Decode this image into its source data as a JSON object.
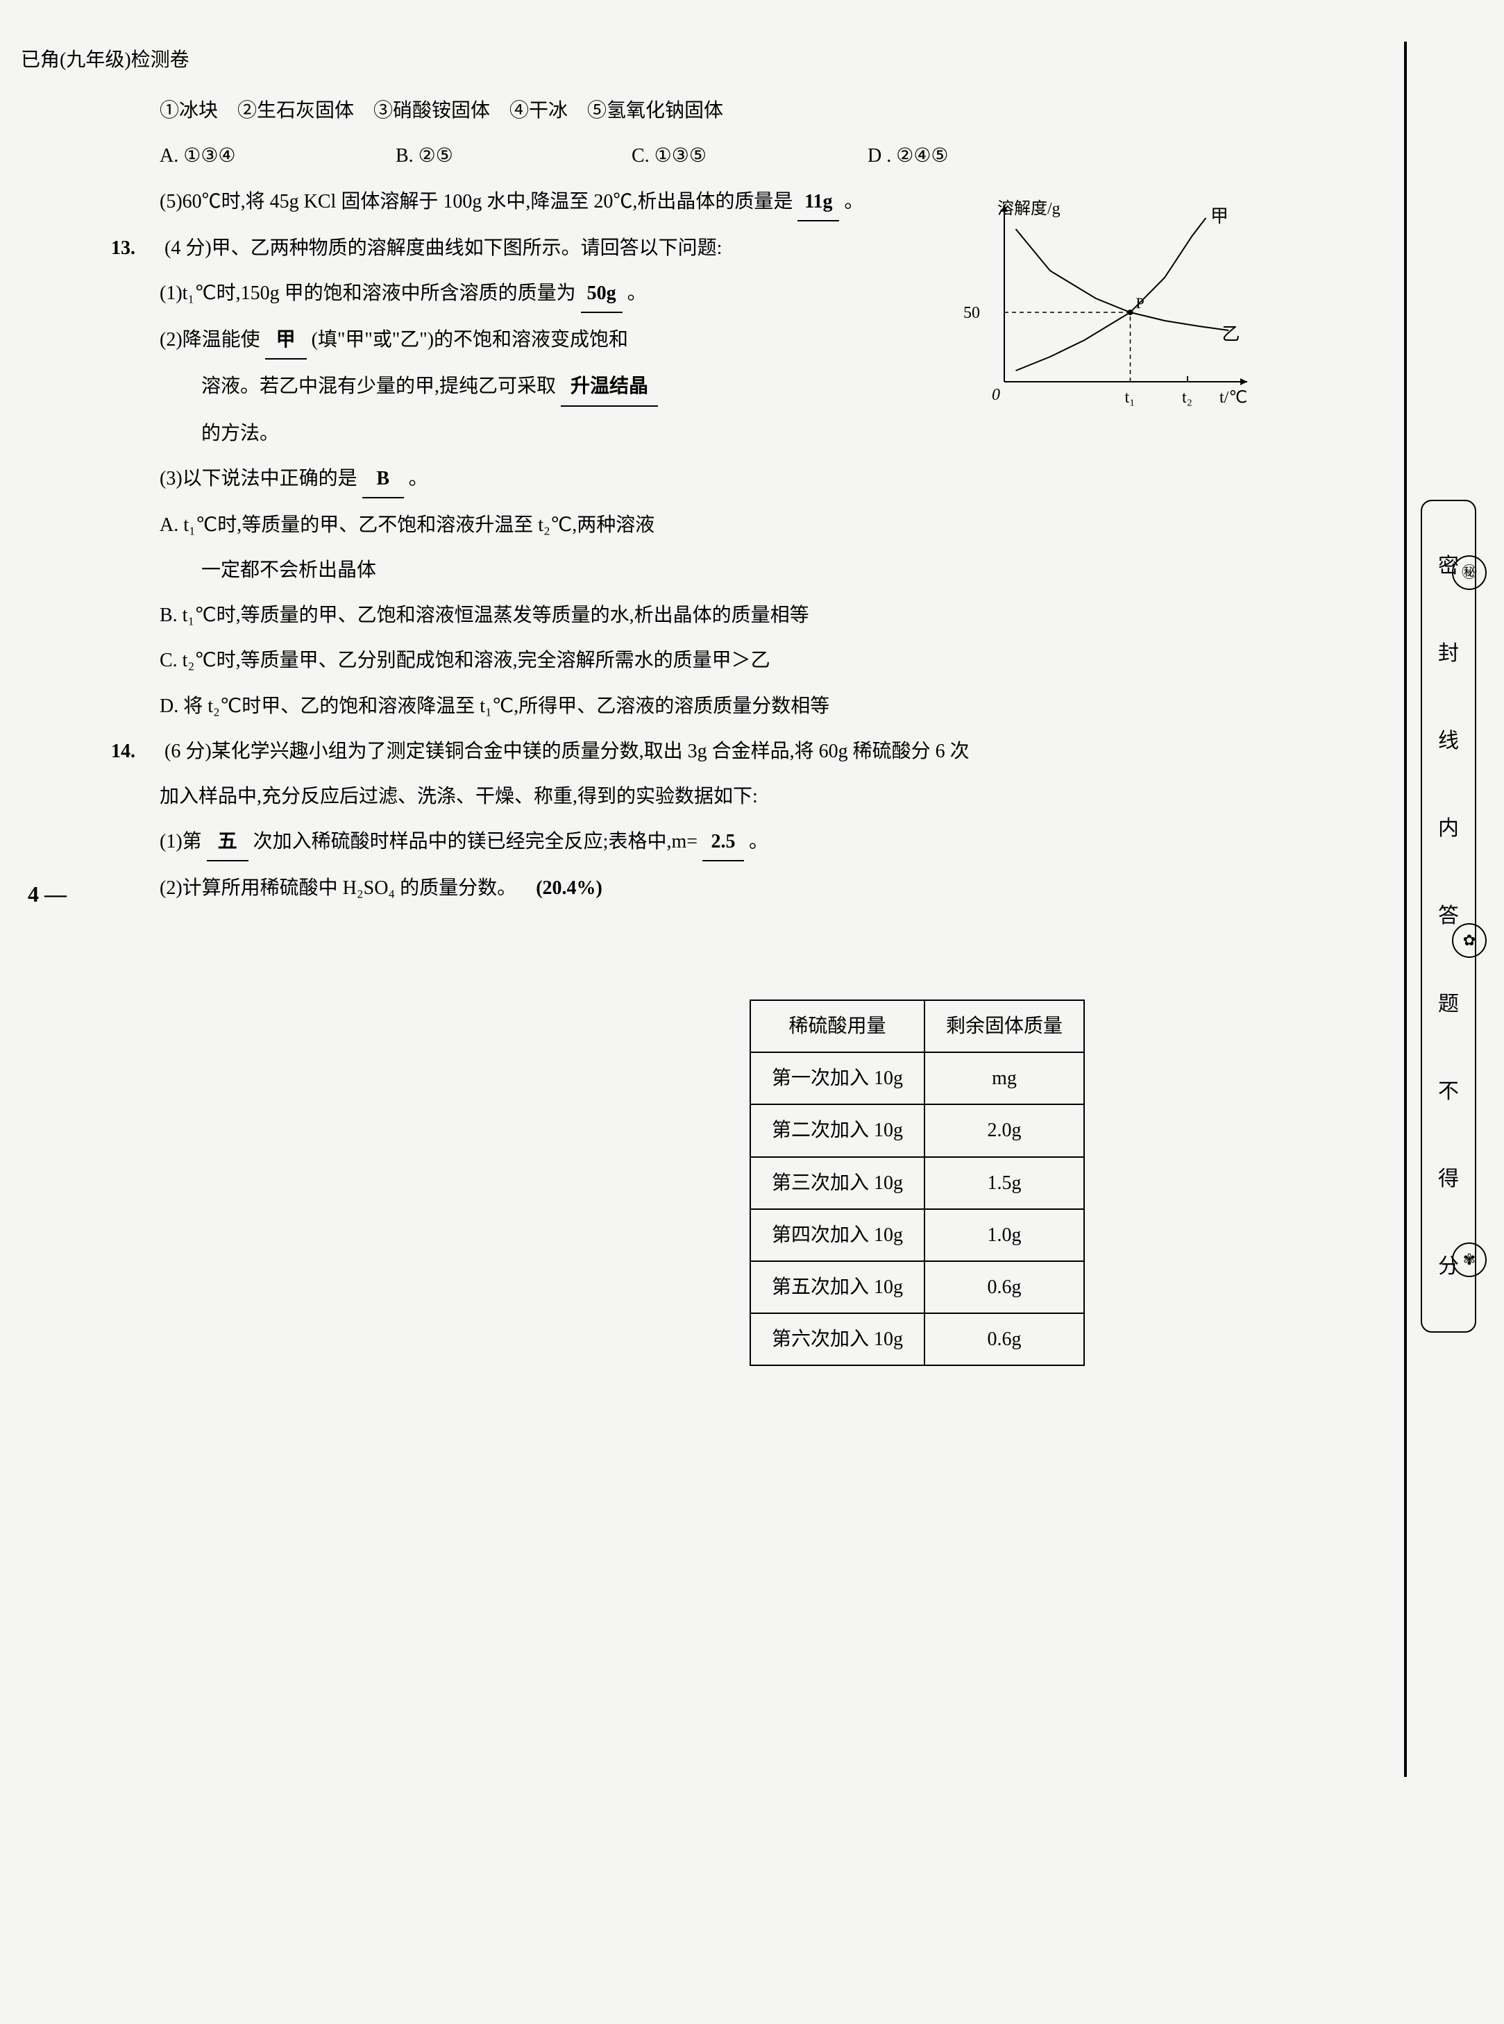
{
  "header": "已角(九年级)检测卷",
  "page_number": "4 —",
  "items_line": "①冰块　②生石灰固体　③硝酸铵固体　④干冰　⑤氢氧化钠固体",
  "options_12": {
    "a": "A. ①③④",
    "b": "B. ②⑤",
    "c": "C. ①③⑤",
    "d": "D . ②④⑤"
  },
  "q12_5_prefix": "(5)60℃时,将 45g KCl 固体溶解于 100g 水中,降温至 20℃,析出晶体的质量是",
  "q12_5_answer": "11g",
  "q12_5_suffix": "。",
  "q13": {
    "num": "13.",
    "head": "(4 分)甲、乙两种物质的溶解度曲线如下图所示。请回答以下问题:",
    "p1_prefix": "(1)t₁℃时,150g 甲的饱和溶液中所含溶质的质量为",
    "p1_answer": "50g",
    "p1_suffix": "。",
    "p2_prefix": "(2)降温能使",
    "p2_answer1": "甲",
    "p2_mid": "(填\"甲\"或\"乙\")的不饱和溶液变成饱和",
    "p2_line2a": "溶液。若乙中混有少量的甲,提纯乙可采取",
    "p2_answer2": "升温结晶",
    "p2_line3": "的方法。",
    "p3_prefix": "(3)以下说法中正确的是",
    "p3_answer": "B",
    "p3_suffix": "。",
    "optA1": "A. t₁℃时,等质量的甲、乙不饱和溶液升温至 t₂℃,两种溶液",
    "optA2": "一定都不会析出晶体",
    "optB": "B. t₁℃时,等质量的甲、乙饱和溶液恒温蒸发等质量的水,析出晶体的质量相等",
    "optC": "C. t₂℃时,等质量甲、乙分别配成饱和溶液,完全溶解所需水的质量甲＞乙",
    "optD": "D. 将 t₂℃时甲、乙的饱和溶液降温至 t₁℃,所得甲、乙溶液的溶质质量分数相等"
  },
  "q14": {
    "num": "14.",
    "head1": "(6 分)某化学兴趣小组为了测定镁铜合金中镁的质量分数,取出 3g 合金样品,将 60g 稀硫酸分 6 次",
    "head2": "加入样品中,充分反应后过滤、洗涤、干燥、称重,得到的实验数据如下:",
    "p1_prefix": "(1)第",
    "p1_ans1": "五",
    "p1_mid": "次加入稀硫酸时样品中的镁已经完全反应;表格中,m=",
    "p1_ans2": "2.5",
    "p1_suffix": "。",
    "p2_prefix": "(2)计算所用稀硫酸中 H₂SO₄ 的质量分数。",
    "p2_answer": "(20.4%)"
  },
  "table": {
    "header": [
      "稀硫酸用量",
      "剩余固体质量"
    ],
    "rows": [
      [
        "第一次加入 10g",
        "mg"
      ],
      [
        "第二次加入 10g",
        "2.0g"
      ],
      [
        "第三次加入 10g",
        "1.5g"
      ],
      [
        "第四次加入 10g",
        "1.0g"
      ],
      [
        "第五次加入 10g",
        "0.6g"
      ],
      [
        "第六次加入 10g",
        "0.6g"
      ]
    ]
  },
  "chart": {
    "type": "line",
    "xlabel": "t/℃",
    "ylabel": "溶解度/g",
    "y_tick": "50",
    "x_ticks": [
      "t₁",
      "t₂"
    ],
    "curve_jia_label": "甲",
    "curve_yi_label": "乙",
    "point_label": "P",
    "origin_label": "0",
    "background": "#f5f5f3",
    "axis_color": "#000000",
    "line_color": "#000000",
    "line_width": 2,
    "xlim": [
      0,
      100
    ],
    "ylim": [
      0,
      120
    ],
    "t1": 55,
    "t2": 80,
    "p_y": 50,
    "jia_points": [
      [
        5,
        8
      ],
      [
        20,
        18
      ],
      [
        35,
        30
      ],
      [
        55,
        50
      ],
      [
        70,
        75
      ],
      [
        82,
        105
      ],
      [
        88,
        118
      ]
    ],
    "yi_points": [
      [
        5,
        110
      ],
      [
        20,
        80
      ],
      [
        40,
        60
      ],
      [
        55,
        50
      ],
      [
        70,
        44
      ],
      [
        85,
        40
      ],
      [
        98,
        37
      ]
    ]
  },
  "seal_chars": [
    "密",
    "封",
    "线",
    "内",
    "答",
    "题",
    "不",
    "得",
    "分"
  ]
}
